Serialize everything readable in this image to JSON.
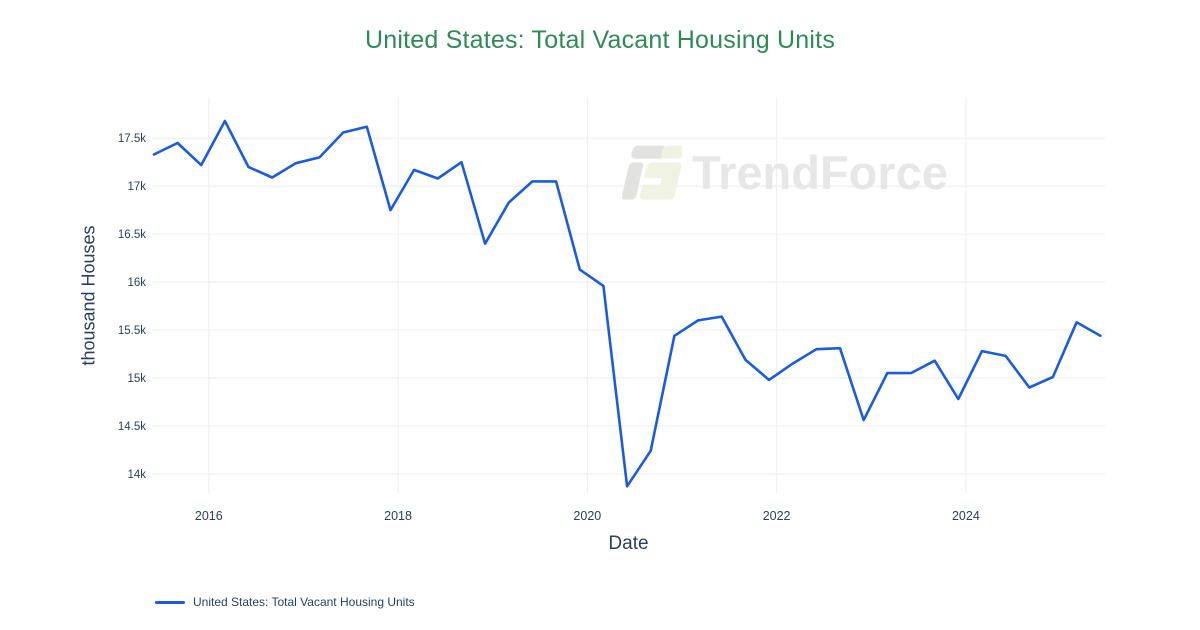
{
  "title": {
    "text": "United States: Total Vacant Housing Units",
    "color": "#2E8B57"
  },
  "watermark": {
    "text": "TrendForce"
  },
  "legend": {
    "items": [
      {
        "label": "United States: Total Vacant Housing Units",
        "color": "#1b5be0"
      }
    ]
  },
  "colors": {
    "line": "#1b5be0",
    "grid": "#eef0f3",
    "tick_text": "#2a3f5f",
    "axis_title_text": "#2a3f5f",
    "title_green": "#2E8B57",
    "watermark_gray": "#e2e2e0",
    "watermark_green": "#f0f3e1",
    "watermark_text": "#e7e7e7"
  },
  "chart_data": {
    "type": "line",
    "title": "United States: Total Vacant Housing Units",
    "xlabel": "Date",
    "ylabel": "thousand Houses",
    "units": "thousand houses",
    "grid": true,
    "legend_position": "bottom-left",
    "x": [
      "2015-Q2",
      "2015-Q3",
      "2015-Q4",
      "2016-Q1",
      "2016-Q2",
      "2016-Q3",
      "2016-Q4",
      "2017-Q1",
      "2017-Q2",
      "2017-Q3",
      "2017-Q4",
      "2018-Q1",
      "2018-Q2",
      "2018-Q3",
      "2018-Q4",
      "2019-Q1",
      "2019-Q2",
      "2019-Q3",
      "2019-Q4",
      "2020-Q1",
      "2020-Q2",
      "2020-Q3",
      "2020-Q4",
      "2021-Q1",
      "2021-Q2",
      "2021-Q3",
      "2021-Q4",
      "2022-Q1",
      "2022-Q2",
      "2022-Q3",
      "2022-Q4",
      "2023-Q1",
      "2023-Q2",
      "2023-Q3",
      "2023-Q4",
      "2024-Q1",
      "2024-Q2",
      "2024-Q3",
      "2024-Q4",
      "2025-Q1",
      "2025-Q2"
    ],
    "series": [
      {
        "name": "United States: Total Vacant Housing Units",
        "color": "#1b5be0",
        "values": [
          17330,
          17450,
          17220,
          17680,
          17200,
          17090,
          17240,
          17300,
          17560,
          17620,
          16750,
          17170,
          17080,
          17250,
          16400,
          16830,
          17050,
          17050,
          16130,
          15960,
          13870,
          14240,
          15440,
          15600,
          15640,
          15190,
          14980,
          15150,
          15300,
          15310,
          14560,
          15050,
          15050,
          15180,
          14780,
          15280,
          15230,
          14900,
          15010,
          15580,
          15440
        ]
      }
    ],
    "yticks": {
      "values": [
        14,
        14.5,
        15,
        15.5,
        16,
        16.5,
        17,
        17.5
      ],
      "labels": [
        "14k",
        "14.5k",
        "15k",
        "15.5k",
        "16k",
        "16.5k",
        "17k",
        "17.5k"
      ]
    },
    "xticks": {
      "values": [
        2016,
        2018,
        2020,
        2022,
        2024
      ],
      "labels": [
        "2016",
        "2018",
        "2020",
        "2022",
        "2024"
      ]
    },
    "ylim_k": [
      13.8,
      17.93
    ],
    "xlim_year": [
      2015.4,
      2025.47
    ]
  }
}
